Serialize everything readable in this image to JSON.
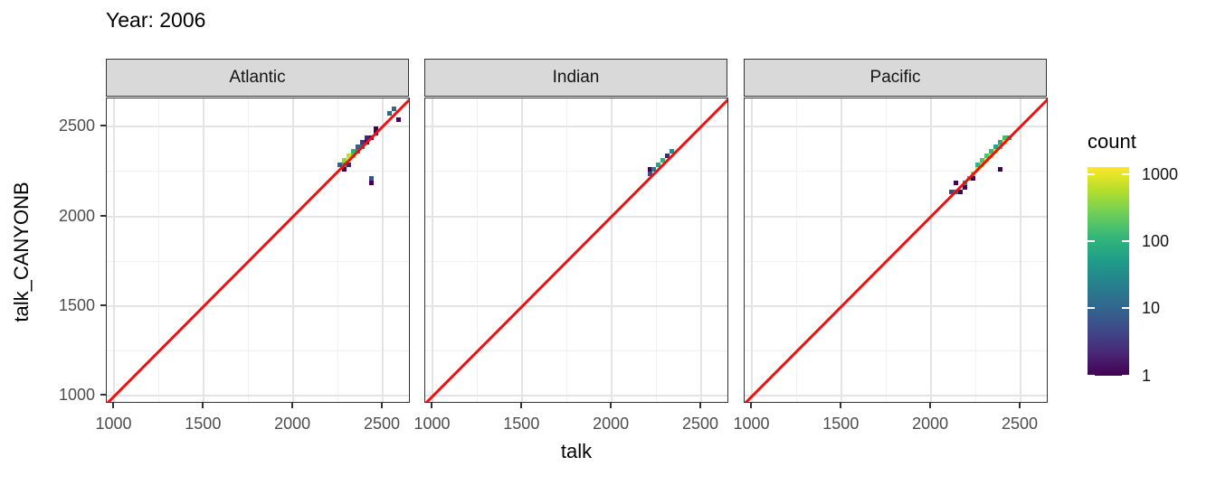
{
  "title": "Year: 2006",
  "chart_data": {
    "type": "heatmap",
    "title": "Year: 2006",
    "xlabel": "talk",
    "ylabel": "talk_CANYONB",
    "xlim": [
      957,
      2657
    ],
    "ylim": [
      957,
      2657
    ],
    "x_ticks": [
      1000,
      1500,
      2000,
      2500
    ],
    "y_ticks": [
      1000,
      1500,
      2000,
      2500
    ],
    "minor_gridlines": [
      1250,
      1750,
      2250
    ],
    "grid": "on",
    "bin_size": 25,
    "reference_line": {
      "type": "y=x",
      "color": "#ee1111"
    },
    "color_scale": {
      "title": "count",
      "type": "log10",
      "domain": [
        1,
        1000
      ],
      "tick_labels": [
        "1000",
        "100",
        "10",
        "1"
      ],
      "tick_values": [
        1000,
        100,
        10,
        1
      ],
      "palette": "viridis",
      "palette_hex": [
        "#440154",
        "#482878",
        "#3e4a89",
        "#31688e",
        "#26828e",
        "#1f9e89",
        "#35b779",
        "#6ece58",
        "#b5de2b",
        "#fde725"
      ]
    },
    "legend_position": "right",
    "panels": [
      {
        "facet": "Atlantic",
        "bins": [
          [
            2287,
            2262,
            1
          ],
          [
            2262,
            2287,
            8
          ],
          [
            2287,
            2287,
            80
          ],
          [
            2287,
            2312,
            300
          ],
          [
            2312,
            2312,
            1000
          ],
          [
            2312,
            2337,
            500
          ],
          [
            2312,
            2287,
            2
          ],
          [
            2337,
            2337,
            200
          ],
          [
            2337,
            2362,
            80
          ],
          [
            2362,
            2362,
            30
          ],
          [
            2362,
            2387,
            8
          ],
          [
            2387,
            2387,
            15
          ],
          [
            2387,
            2412,
            3
          ],
          [
            2412,
            2412,
            1
          ],
          [
            2412,
            2437,
            2
          ],
          [
            2437,
            2437,
            1
          ],
          [
            2462,
            2462,
            1
          ],
          [
            2462,
            2487,
            1
          ],
          [
            2537,
            2575,
            10
          ],
          [
            2562,
            2597,
            10
          ],
          [
            2587,
            2537,
            1
          ],
          [
            2437,
            2212,
            6
          ],
          [
            2437,
            2187,
            1
          ]
        ]
      },
      {
        "facet": "Indian",
        "bins": [
          [
            2212,
            2237,
            5
          ],
          [
            2212,
            2262,
            1
          ],
          [
            2237,
            2262,
            15
          ],
          [
            2262,
            2287,
            60
          ],
          [
            2287,
            2312,
            80
          ],
          [
            2312,
            2337,
            2
          ],
          [
            2337,
            2362,
            30
          ]
        ]
      },
      {
        "facet": "Pacific",
        "bins": [
          [
            2112,
            2137,
            5
          ],
          [
            2137,
            2137,
            15
          ],
          [
            2162,
            2137,
            1
          ],
          [
            2137,
            2187,
            1
          ],
          [
            2187,
            2162,
            1
          ],
          [
            2187,
            2187,
            30
          ],
          [
            2212,
            2212,
            100
          ],
          [
            2237,
            2212,
            1
          ],
          [
            2237,
            2237,
            300
          ],
          [
            2262,
            2262,
            700
          ],
          [
            2262,
            2287,
            100
          ],
          [
            2287,
            2287,
            400
          ],
          [
            2287,
            2312,
            150
          ],
          [
            2312,
            2312,
            1000
          ],
          [
            2312,
            2337,
            150
          ],
          [
            2337,
            2337,
            500
          ],
          [
            2337,
            2362,
            100
          ],
          [
            2362,
            2362,
            800
          ],
          [
            2362,
            2387,
            60
          ],
          [
            2387,
            2387,
            200
          ],
          [
            2387,
            2412,
            60
          ],
          [
            2412,
            2412,
            1000
          ],
          [
            2412,
            2437,
            120
          ],
          [
            2437,
            2437,
            60
          ],
          [
            2387,
            2262,
            1
          ]
        ]
      }
    ]
  }
}
